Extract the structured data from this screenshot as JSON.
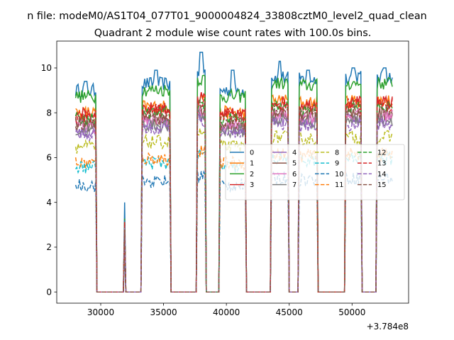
{
  "chart_data": {
    "type": "line",
    "suptitle": "n file: modeM0/AS1T04_077T01_9000004824_33808cztM0_level2_quad_clean",
    "title": "Quadrant 2 module wise count rates with 100.0s bins.",
    "xlabel": "",
    "ylabel": "",
    "x_offset_label": "+3.784e8",
    "xlim": [
      26500,
      54500
    ],
    "ylim": [
      -0.5,
      11.2
    ],
    "x_ticks": [
      30000,
      35000,
      40000,
      45000,
      50000
    ],
    "x_tick_labels": [
      "30000",
      "35000",
      "40000",
      "45000",
      "50000"
    ],
    "y_ticks": [
      0,
      2,
      4,
      6,
      8,
      10
    ],
    "y_tick_labels": [
      "0",
      "2",
      "4",
      "6",
      "8",
      "10"
    ],
    "grid": false,
    "legend_position": "center-right",
    "legend_columns": 4,
    "on_segments": [
      {
        "x_start": 28000,
        "x_end": 29600,
        "base_level": 9.0,
        "peak": 9.4
      },
      {
        "x_start": 31900,
        "x_end": 31950,
        "base_level": 3.5,
        "peak": 4.0
      },
      {
        "x_start": 33300,
        "x_end": 35500,
        "base_level": 9.3,
        "peak": 9.9
      },
      {
        "x_start": 37700,
        "x_end": 38300,
        "base_level": 9.8,
        "peak": 10.7
      },
      {
        "x_start": 39500,
        "x_end": 41500,
        "base_level": 9.0,
        "peak": 9.9
      },
      {
        "x_start": 43600,
        "x_end": 44900,
        "base_level": 9.6,
        "peak": 10.3
      },
      {
        "x_start": 45800,
        "x_end": 47200,
        "base_level": 9.5,
        "peak": 9.9
      },
      {
        "x_start": 49500,
        "x_end": 50700,
        "base_level": 9.6,
        "peak": 10.0
      },
      {
        "x_start": 52000,
        "x_end": 53200,
        "base_level": 9.6,
        "peak": 10.0
      }
    ],
    "off_level": 0,
    "series": [
      {
        "name": "0",
        "color": "#1f77b4",
        "dash": "solid",
        "scale": 1.0
      },
      {
        "name": "1",
        "color": "#ff7f0e",
        "dash": "solid",
        "scale": 0.89
      },
      {
        "name": "2",
        "color": "#2ca02c",
        "dash": "solid",
        "scale": 0.97
      },
      {
        "name": "3",
        "color": "#d62728",
        "dash": "solid",
        "scale": 0.88
      },
      {
        "name": "4",
        "color": "#9467bd",
        "dash": "solid",
        "scale": 0.8
      },
      {
        "name": "5",
        "color": "#8c564b",
        "dash": "solid",
        "scale": 0.83
      },
      {
        "name": "6",
        "color": "#e377c2",
        "dash": "solid",
        "scale": 0.82
      },
      {
        "name": "7",
        "color": "#7f7f7f",
        "dash": "solid",
        "scale": 0.8
      },
      {
        "name": "8",
        "color": "#bcbd22",
        "dash": "dashed",
        "scale": 0.72
      },
      {
        "name": "9",
        "color": "#17becf",
        "dash": "dashed",
        "scale": 0.62
      },
      {
        "name": "10",
        "color": "#1f77b4",
        "dash": "dashed",
        "scale": 0.53
      },
      {
        "name": "11",
        "color": "#ff7f0e",
        "dash": "dashed",
        "scale": 0.64
      },
      {
        "name": "12",
        "color": "#2ca02c",
        "dash": "dashed",
        "scale": 0.86
      },
      {
        "name": "13",
        "color": "#d62728",
        "dash": "dashed",
        "scale": 0.87
      },
      {
        "name": "14",
        "color": "#9467bd",
        "dash": "dashed",
        "scale": 0.78
      },
      {
        "name": "15",
        "color": "#8c564b",
        "dash": "dashed",
        "scale": 0.84
      }
    ]
  }
}
